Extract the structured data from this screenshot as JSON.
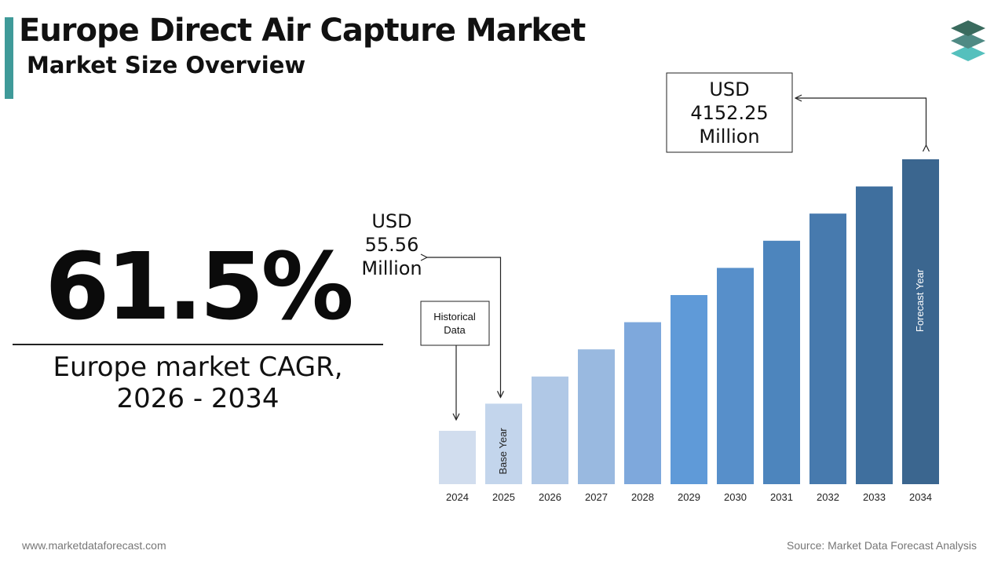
{
  "header": {
    "title": "Europe Direct Air Capture Market",
    "subtitle": "Market Size Overview"
  },
  "kpi": {
    "cagr_value": "61.5%",
    "cagr_label_line1": "Europe market CAGR,",
    "cagr_label_line2": "2026 - 2034"
  },
  "chart_data": {
    "type": "bar",
    "categories": [
      "2024",
      "2025",
      "2026",
      "2027",
      "2028",
      "2029",
      "2030",
      "2031",
      "2032",
      "2033",
      "2034"
    ],
    "values": [
      34.4,
      55.56,
      89.7,
      144.9,
      234.1,
      378.0,
      610.5,
      985.9,
      1592.3,
      2571.6,
      4152.25
    ],
    "scale": "log",
    "colors": [
      "#d1ddee",
      "#c3d5ec",
      "#b0c8e6",
      "#99b9e0",
      "#7ea8dc",
      "#5f9ad8",
      "#578fca",
      "#4d85bd",
      "#477aae",
      "#3f6f9e",
      "#3b668f"
    ],
    "bar_labels": {
      "2025": "Base Year",
      "2034": "Forecast Year"
    },
    "callouts": {
      "start_value": [
        "USD",
        "55.56",
        "Million"
      ],
      "end_value": [
        "USD",
        "4152.25",
        "Million"
      ],
      "historical": [
        "Historical",
        "Data"
      ]
    }
  },
  "footer": {
    "website": "www.marketdataforecast.com",
    "source": "Source: Market Data Forecast Analysis"
  },
  "logo": {
    "icon": "stacked-layers-icon",
    "colors": [
      "#3a6b5e",
      "#4f8a84",
      "#55c0bd"
    ]
  }
}
